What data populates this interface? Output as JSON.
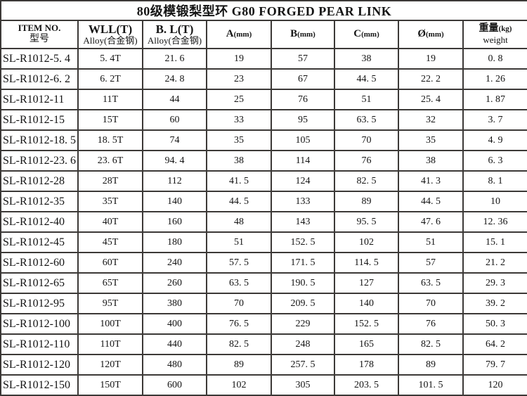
{
  "title": "80级模锻梨型环 G80 FORGED PEAR LINK",
  "table": {
    "headers": [
      {
        "key": "item-no",
        "line1": "ITEM NO.",
        "line2": "型号"
      },
      {
        "key": "wll",
        "line1": "WLL(T)",
        "line2": "Alloy(合金钢)"
      },
      {
        "key": "bl",
        "line1": "B. L(T)",
        "line2": "Alloy(合金钢)"
      },
      {
        "key": "a",
        "line1": "A",
        "unit": "(mm)"
      },
      {
        "key": "b",
        "line1": "B",
        "unit": "(mm)"
      },
      {
        "key": "c",
        "line1": "C",
        "unit": "(mm)"
      },
      {
        "key": "diameter",
        "line1": "Ø",
        "unit": "(mm)"
      },
      {
        "key": "weight",
        "line1": "重量",
        "unit": "(kg)",
        "line2": "weight"
      }
    ],
    "rows": [
      [
        "SL-R1012-5. 4",
        "5. 4T",
        "21. 6",
        "19",
        "57",
        "38",
        "19",
        "0. 8"
      ],
      [
        "SL-R1012-6. 2",
        "6. 2T",
        "24. 8",
        "23",
        "67",
        "44. 5",
        "22. 2",
        "1. 26"
      ],
      [
        "SL-R1012-11",
        "11T",
        "44",
        "25",
        "76",
        "51",
        "25. 4",
        "1. 87"
      ],
      [
        "SL-R1012-15",
        "15T",
        "60",
        "33",
        "95",
        "63. 5",
        "32",
        "3. 7"
      ],
      [
        "SL-R1012-18. 5",
        "18. 5T",
        "74",
        "35",
        "105",
        "70",
        "35",
        "4. 9"
      ],
      [
        "SL-R1012-23. 6",
        "23. 6T",
        "94. 4",
        "38",
        "114",
        "76",
        "38",
        "6. 3"
      ],
      [
        "SL-R1012-28",
        "28T",
        "112",
        "41. 5",
        "124",
        "82. 5",
        "41. 3",
        "8. 1"
      ],
      [
        "SL-R1012-35",
        "35T",
        "140",
        "44. 5",
        "133",
        "89",
        "44. 5",
        "10"
      ],
      [
        "SL-R1012-40",
        "40T",
        "160",
        "48",
        "143",
        "95. 5",
        "47. 6",
        "12. 36"
      ],
      [
        "SL-R1012-45",
        "45T",
        "180",
        "51",
        "152. 5",
        "102",
        "51",
        "15. 1"
      ],
      [
        "SL-R1012-60",
        "60T",
        "240",
        "57. 5",
        "171. 5",
        "114. 5",
        "57",
        "21. 2"
      ],
      [
        "SL-R1012-65",
        "65T",
        "260",
        "63. 5",
        "190. 5",
        "127",
        "63. 5",
        "29. 3"
      ],
      [
        "SL-R1012-95",
        "95T",
        "380",
        "70",
        "209. 5",
        "140",
        "70",
        "39. 2"
      ],
      [
        "SL-R1012-100",
        "100T",
        "400",
        "76. 5",
        "229",
        "152. 5",
        "76",
        "50. 3"
      ],
      [
        "SL-R1012-110",
        "110T",
        "440",
        "82. 5",
        "248",
        "165",
        "82. 5",
        "64. 2"
      ],
      [
        "SL-R1012-120",
        "120T",
        "480",
        "89",
        "257. 5",
        "178",
        "89",
        "79. 7"
      ],
      [
        "SL-R1012-150",
        "150T",
        "600",
        "102",
        "305",
        "203. 5",
        "101. 5",
        "120"
      ]
    ]
  },
  "colors": {
    "border": "#3c3937",
    "background": "#ffffff",
    "text": "#141414"
  }
}
